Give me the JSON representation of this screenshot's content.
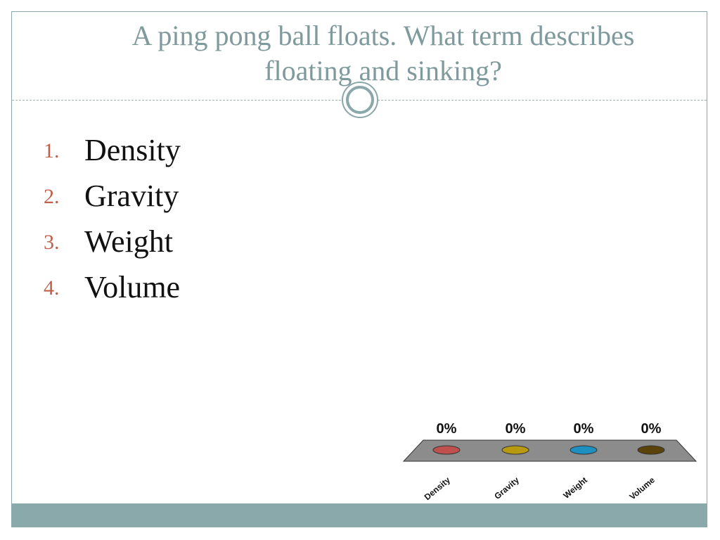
{
  "slide": {
    "title_line1": "A ping pong ball floats.  What term describes",
    "title_line2": "floating and sinking?"
  },
  "answers": [
    {
      "number": "1.",
      "text": "Density"
    },
    {
      "number": "2.",
      "text": "Gravity"
    },
    {
      "number": "3.",
      "text": "Weight"
    },
    {
      "number": "4.",
      "text": "Volume"
    }
  ],
  "colors": {
    "title": "#7f9a9c",
    "accent": "#8aa9ab",
    "number": "#c0604a"
  },
  "chart_data": {
    "type": "bar",
    "categories": [
      "Density",
      "Gravity",
      "Weight",
      "Volume"
    ],
    "values": [
      0,
      0,
      0,
      0
    ],
    "value_labels": [
      "0%",
      "0%",
      "0%",
      "0%"
    ],
    "unit": "%",
    "ylim": [
      0,
      100
    ],
    "bar_colors": [
      "#c0504d",
      "#b89a10",
      "#1f8fc0",
      "#5a4208"
    ],
    "grid": false,
    "legend": "none"
  }
}
